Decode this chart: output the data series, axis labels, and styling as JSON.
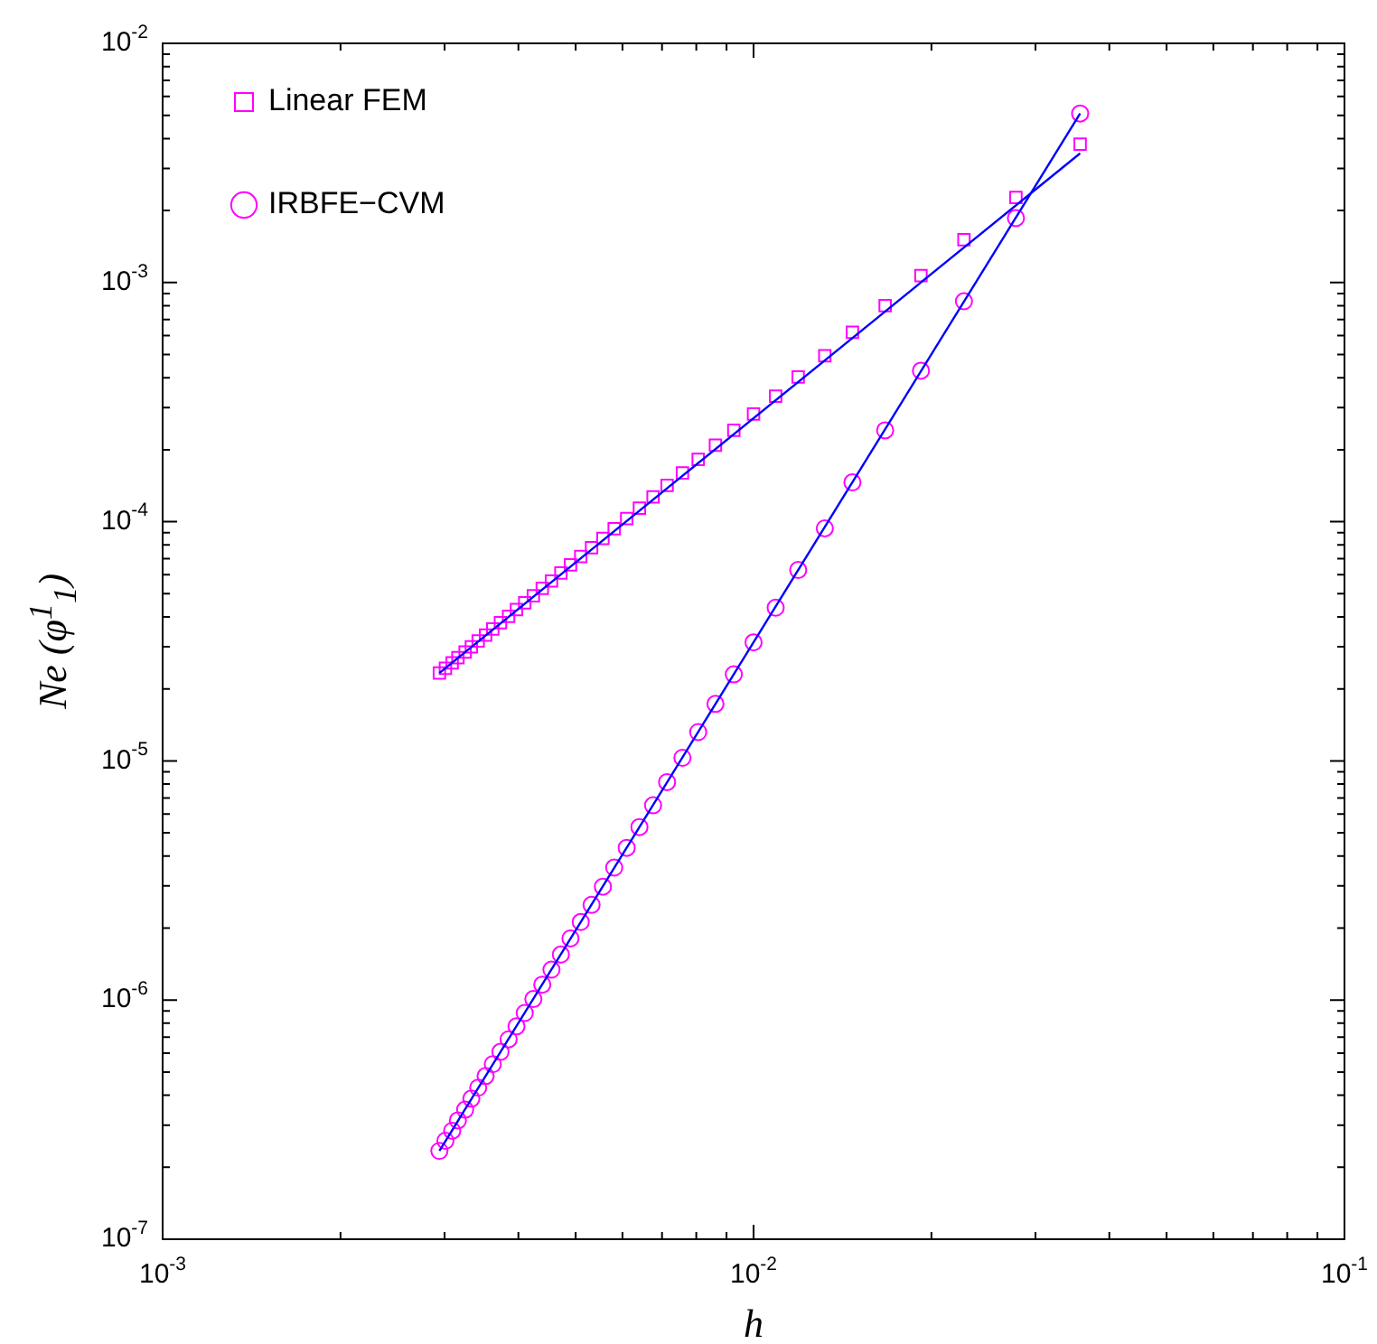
{
  "chart_data": {
    "type": "scatter",
    "xlabel": "h",
    "ylabel": "Ne (φ$^{1}$$_{1}$)",
    "log": "xy",
    "legend": "top left",
    "xlim": [
      0.001,
      0.1
    ],
    "xticks": [
      {
        "value": 0.001,
        "label": "10$^{-3}$"
      },
      {
        "value": 0.002,
        "label": null
      },
      {
        "value": 0.003,
        "label": null
      },
      {
        "value": 0.004,
        "label": null
      },
      {
        "value": 0.005,
        "label": null
      },
      {
        "value": 0.006,
        "label": null
      },
      {
        "value": 0.007,
        "label": null
      },
      {
        "value": 0.008,
        "label": null
      },
      {
        "value": 0.009,
        "label": null
      },
      {
        "value": 0.01,
        "label": "10$^{-2}$"
      },
      {
        "value": 0.02,
        "label": null
      },
      {
        "value": 0.03,
        "label": null
      },
      {
        "value": 0.04,
        "label": null
      },
      {
        "value": 0.05,
        "label": null
      },
      {
        "value": 0.06,
        "label": null
      },
      {
        "value": 0.07,
        "label": null
      },
      {
        "value": 0.08,
        "label": null
      },
      {
        "value": 0.09,
        "label": null
      },
      {
        "value": 0.1,
        "label": "10$^{-1}$"
      }
    ],
    "ylim": [
      1e-07,
      0.01
    ],
    "yticks": [
      {
        "value": 1e-07,
        "label": "10$^{-7}$"
      },
      {
        "value": 2e-07,
        "label": null
      },
      {
        "value": 3e-07,
        "label": null
      },
      {
        "value": 4e-07,
        "label": null
      },
      {
        "value": 5e-07,
        "label": null
      },
      {
        "value": 6e-07,
        "label": null
      },
      {
        "value": 7e-07,
        "label": null
      },
      {
        "value": 8e-07,
        "label": null
      },
      {
        "value": 9e-07,
        "label": null
      },
      {
        "value": 1e-06,
        "label": "10$^{-6}$"
      },
      {
        "value": 2e-06,
        "label": null
      },
      {
        "value": 3e-06,
        "label": null
      },
      {
        "value": 4e-06,
        "label": null
      },
      {
        "value": 5e-06,
        "label": null
      },
      {
        "value": 6e-06,
        "label": null
      },
      {
        "value": 7e-06,
        "label": null
      },
      {
        "value": 8e-06,
        "label": null
      },
      {
        "value": 9e-06,
        "label": null
      },
      {
        "value": 1e-05,
        "label": "10$^{-5}$"
      },
      {
        "value": 2e-05,
        "label": null
      },
      {
        "value": 3e-05,
        "label": null
      },
      {
        "value": 4e-05,
        "label": null
      },
      {
        "value": 5e-05,
        "label": null
      },
      {
        "value": 6e-05,
        "label": null
      },
      {
        "value": 7e-05,
        "label": null
      },
      {
        "value": 8e-05,
        "label": null
      },
      {
        "value": 9e-05,
        "label": null
      },
      {
        "value": 0.0001,
        "label": "10$^{-4}$"
      },
      {
        "value": 0.0002,
        "label": null
      },
      {
        "value": 0.0003,
        "label": null
      },
      {
        "value": 0.0004,
        "label": null
      },
      {
        "value": 0.0005,
        "label": null
      },
      {
        "value": 0.0006,
        "label": null
      },
      {
        "value": 0.0007,
        "label": null
      },
      {
        "value": 0.0008,
        "label": null
      },
      {
        "value": 0.0009,
        "label": null
      },
      {
        "value": 0.001,
        "label": "10$^{-3}$"
      },
      {
        "value": 0.002,
        "label": null
      },
      {
        "value": 0.003,
        "label": null
      },
      {
        "value": 0.004,
        "label": null
      },
      {
        "value": 0.005,
        "label": null
      },
      {
        "value": 0.006,
        "label": null
      },
      {
        "value": 0.007,
        "label": null
      },
      {
        "value": 0.008,
        "label": null
      },
      {
        "value": 0.009,
        "label": null
      },
      {
        "value": 0.01,
        "label": "10$^{-2}$"
      }
    ],
    "x": [
      0.0357,
      0.0278,
      0.0227,
      0.0192,
      0.0167,
      0.0147,
      0.0132,
      0.0119,
      0.0109,
      0.01,
      0.00926,
      0.00862,
      0.00806,
      0.00758,
      0.00714,
      0.00676,
      0.00641,
      0.0061,
      0.00581,
      0.00556,
      0.00532,
      0.0051,
      0.0049,
      0.00472,
      0.00455,
      0.00439,
      0.00424,
      0.0041,
      0.00397,
      0.00385,
      0.00373,
      0.00362,
      0.00352,
      0.00342,
      0.00333,
      0.00325,
      0.00316,
      0.00309,
      0.00301,
      0.00294
    ],
    "series": [
      {
        "name": "Linear FEM",
        "color": "#ff00ff",
        "marker": "square",
        "values": [
          0.00379,
          0.00227,
          0.00151,
          0.00107,
          0.000801,
          0.00062,
          0.000494,
          0.000403,
          0.000335,
          0.000282,
          0.000241,
          0.000209,
          0.000182,
          0.00016,
          0.000142,
          0.000127,
          0.000114,
          0.000103,
          9.34e-05,
          8.51e-05,
          7.79e-05,
          7.15e-05,
          6.6e-05,
          6.1e-05,
          5.65e-05,
          5.26e-05,
          4.9e-05,
          4.58e-05,
          4.29e-05,
          4.02e-05,
          3.78e-05,
          3.56e-05,
          3.36e-05,
          3.17e-05,
          3e-05,
          2.85e-05,
          2.7e-05,
          2.57e-05,
          2.44e-05,
          2.33e-05
        ]
      },
      {
        "name": "IRBFE−CVM",
        "color": "#ff00ff",
        "marker": "circle",
        "values": [
          0.00509,
          0.00186,
          0.000835,
          0.000428,
          0.000241,
          0.000146,
          9.38e-05,
          6.28e-05,
          4.37e-05,
          3.13e-05,
          2.3e-05,
          1.73e-05,
          1.32e-05,
          1.03e-05,
          8.15e-06,
          6.52e-06,
          5.29e-06,
          4.33e-06,
          3.58e-06,
          2.98e-06,
          2.5e-06,
          2.12e-06,
          1.81e-06,
          1.55e-06,
          1.34e-06,
          1.16e-06,
          1.01e-06,
          8.83e-07,
          7.76e-07,
          6.85e-07,
          6.07e-07,
          5.39e-07,
          4.81e-07,
          4.3e-07,
          3.87e-07,
          3.48e-07,
          3.14e-07,
          2.84e-07,
          2.58e-07,
          2.34e-07
        ]
      },
      {
        "type": "line",
        "color": "#0000ff",
        "line_style": "solid",
        "values": [
          0.00347,
          null,
          null,
          null,
          null,
          null,
          null,
          null,
          null,
          null,
          null,
          null,
          null,
          null,
          null,
          null,
          null,
          null,
          null,
          null,
          null,
          null,
          null,
          null,
          null,
          null,
          null,
          null,
          null,
          null,
          null,
          null,
          null,
          null,
          null,
          null,
          null,
          null,
          null,
          2.33e-05
        ]
      },
      {
        "type": "line",
        "color": "#0000ff",
        "line_style": "solid",
        "values": [
          0.00509,
          null,
          null,
          null,
          null,
          null,
          null,
          null,
          null,
          null,
          null,
          null,
          null,
          null,
          null,
          null,
          null,
          null,
          null,
          null,
          null,
          null,
          null,
          null,
          null,
          null,
          null,
          null,
          null,
          null,
          null,
          null,
          null,
          null,
          null,
          null,
          null,
          null,
          null,
          2.34e-07
        ]
      }
    ]
  }
}
